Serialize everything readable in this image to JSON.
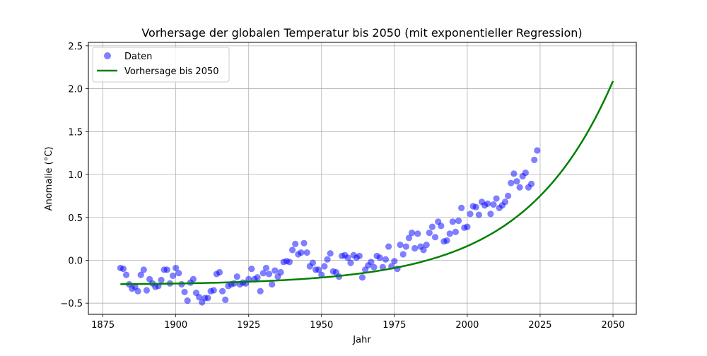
{
  "chart_data": {
    "type": "scatter",
    "title": "Vorhersage der globalen Temperatur bis 2050 (mit exponentieller Regression)",
    "xlabel": "Jahr",
    "ylabel": "Anomalie (°C)",
    "xlim": [
      1870,
      2058
    ],
    "ylim": [
      -0.63,
      2.54
    ],
    "x_ticks": [
      1875,
      1900,
      1925,
      1950,
      1975,
      2000,
      2025,
      2050
    ],
    "y_ticks": [
      -0.5,
      0.0,
      0.5,
      1.0,
      1.5,
      2.0,
      2.5
    ],
    "x_tick_labels": [
      "1875",
      "1900",
      "1925",
      "1950",
      "1975",
      "2000",
      "2025",
      "2050"
    ],
    "y_tick_labels": [
      "−0.5",
      "0.0",
      "0.5",
      "1.0",
      "1.5",
      "2.0",
      "2.5"
    ],
    "grid": true,
    "legend_position": "top-left",
    "series": [
      {
        "name": "Daten",
        "kind": "scatter",
        "color": "#0000ff",
        "opacity": 0.5,
        "x": [
          1881,
          1882,
          1883,
          1884,
          1885,
          1886,
          1887,
          1888,
          1889,
          1890,
          1891,
          1892,
          1893,
          1894,
          1895,
          1896,
          1897,
          1898,
          1899,
          1900,
          1901,
          1902,
          1903,
          1904,
          1905,
          1906,
          1907,
          1908,
          1909,
          1910,
          1911,
          1912,
          1913,
          1914,
          1915,
          1916,
          1917,
          1918,
          1919,
          1920,
          1921,
          1922,
          1923,
          1924,
          1925,
          1926,
          1927,
          1928,
          1929,
          1930,
          1931,
          1932,
          1933,
          1934,
          1935,
          1936,
          1937,
          1938,
          1939,
          1940,
          1941,
          1942,
          1943,
          1944,
          1945,
          1946,
          1947,
          1948,
          1949,
          1950,
          1951,
          1952,
          1953,
          1954,
          1955,
          1956,
          1957,
          1958,
          1959,
          1960,
          1961,
          1962,
          1963,
          1964,
          1965,
          1966,
          1967,
          1968,
          1969,
          1970,
          1971,
          1972,
          1973,
          1974,
          1975,
          1976,
          1977,
          1978,
          1979,
          1980,
          1981,
          1982,
          1983,
          1984,
          1985,
          1986,
          1987,
          1988,
          1989,
          1990,
          1991,
          1992,
          1993,
          1994,
          1995,
          1996,
          1997,
          1998,
          1999,
          2000,
          2001,
          2002,
          2003,
          2004,
          2005,
          2006,
          2007,
          2008,
          2009,
          2010,
          2011,
          2012,
          2013,
          2014,
          2015,
          2016,
          2017,
          2018,
          2019,
          2020,
          2021,
          2022,
          2023,
          2024
        ],
        "y": [
          -0.09,
          -0.1,
          -0.17,
          -0.28,
          -0.33,
          -0.31,
          -0.36,
          -0.17,
          -0.11,
          -0.35,
          -0.22,
          -0.27,
          -0.31,
          -0.3,
          -0.23,
          -0.11,
          -0.11,
          -0.27,
          -0.18,
          -0.09,
          -0.15,
          -0.28,
          -0.37,
          -0.47,
          -0.26,
          -0.22,
          -0.38,
          -0.43,
          -0.49,
          -0.44,
          -0.44,
          -0.36,
          -0.35,
          -0.16,
          -0.14,
          -0.36,
          -0.46,
          -0.3,
          -0.28,
          -0.27,
          -0.19,
          -0.28,
          -0.26,
          -0.27,
          -0.22,
          -0.1,
          -0.22,
          -0.2,
          -0.36,
          -0.15,
          -0.09,
          -0.16,
          -0.28,
          -0.12,
          -0.19,
          -0.14,
          -0.02,
          -0.01,
          -0.02,
          0.12,
          0.19,
          0.07,
          0.09,
          0.2,
          0.09,
          -0.07,
          -0.03,
          -0.11,
          -0.11,
          -0.17,
          -0.07,
          0.01,
          0.08,
          -0.13,
          -0.14,
          -0.19,
          0.05,
          0.06,
          0.03,
          -0.03,
          0.06,
          0.03,
          0.05,
          -0.2,
          -0.11,
          -0.06,
          -0.02,
          -0.08,
          0.05,
          0.03,
          -0.08,
          0.01,
          0.16,
          -0.07,
          -0.01,
          -0.1,
          0.18,
          0.07,
          0.16,
          0.26,
          0.32,
          0.14,
          0.31,
          0.16,
          0.12,
          0.18,
          0.32,
          0.39,
          0.27,
          0.45,
          0.4,
          0.22,
          0.23,
          0.31,
          0.45,
          0.33,
          0.46,
          0.61,
          0.38,
          0.39,
          0.54,
          0.63,
          0.62,
          0.53,
          0.68,
          0.64,
          0.66,
          0.54,
          0.65,
          0.72,
          0.61,
          0.64,
          0.68,
          0.75,
          0.9,
          1.01,
          0.92,
          0.85,
          0.98,
          1.02,
          0.85,
          0.89,
          1.17,
          1.28
        ]
      },
      {
        "name": "Vorhersage bis 2050",
        "kind": "line",
        "color": "#008000",
        "model": "a*exp(b*(x-1881))+c",
        "a": 0.00874,
        "b": 0.03317,
        "c": -0.2874,
        "x_range": [
          1881,
          2050
        ]
      }
    ]
  }
}
